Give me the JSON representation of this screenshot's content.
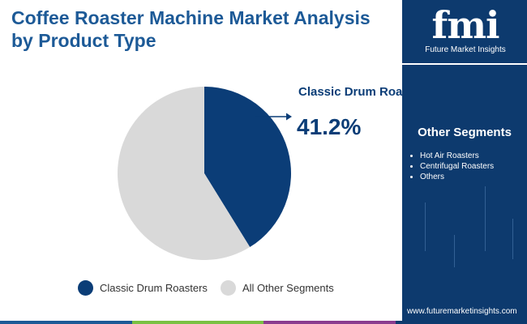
{
  "title": "Coffee Roaster Machine Market Analysis by Product Type",
  "chart_data": {
    "type": "pie",
    "categories": [
      "Classic Drum Roasters",
      "All Other Segments"
    ],
    "values": [
      41.2,
      58.8
    ],
    "colors": [
      "#0b3d77",
      "#d9d9d9"
    ],
    "callout": {
      "label": "Classic Drum Roasters",
      "value": "41.2%"
    },
    "legend": {
      "placement": "bottom",
      "entries": [
        "Classic Drum Roasters",
        "All Other Segments"
      ]
    }
  },
  "sidebar": {
    "logo_text": "fmi",
    "logo_subtext": "Future Market Insights",
    "segments_title": "Other Segments",
    "segments": [
      "Hot Air Roasters",
      "Centrifugal Roasters",
      "Others"
    ],
    "url": "www.futuremarketinsights.com"
  },
  "colors": {
    "title": "#1d5a97",
    "panel": "#0d3a6e",
    "accent_bar": [
      "#1d5a97",
      "#7ac143",
      "#8a3c8f",
      "#0d3a6e"
    ]
  }
}
